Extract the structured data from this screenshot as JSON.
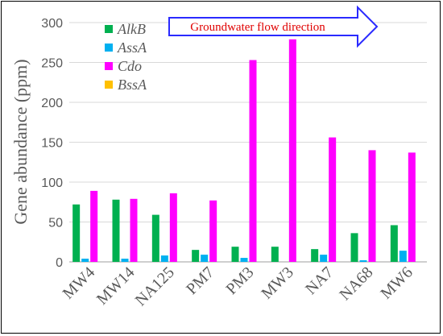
{
  "chart_data": {
    "type": "bar",
    "title": "",
    "xlabel": "",
    "ylabel": "Gene abundance (ppm)",
    "ylim": [
      0,
      300
    ],
    "yticks": [
      0,
      50,
      100,
      150,
      200,
      250,
      300
    ],
    "grid": true,
    "legend_position": "top-left",
    "categories": [
      "MW4",
      "MW14",
      "NA125",
      "PM7",
      "PM3",
      "MW3",
      "NA7",
      "NA68",
      "MW6"
    ],
    "series": [
      {
        "name": "AlkB",
        "color": "#00b050",
        "values": [
          72,
          78,
          59,
          15,
          19,
          19,
          16,
          36,
          46
        ]
      },
      {
        "name": "AssA",
        "color": "#00b0f0",
        "values": [
          4,
          4,
          8,
          9,
          5,
          0,
          9,
          2,
          14
        ]
      },
      {
        "name": "Cdo",
        "color": "#ff00ff",
        "values": [
          89,
          79,
          86,
          77,
          253,
          279,
          156,
          140,
          137
        ]
      },
      {
        "name": "BssA",
        "color": "#ffc000",
        "values": [
          0,
          0,
          0,
          0,
          0,
          0,
          0,
          0,
          0
        ]
      }
    ],
    "annotation": {
      "text": "Groundwater flow direction",
      "arrow_color": "#2a2aff",
      "text_color": "#e00000"
    }
  }
}
